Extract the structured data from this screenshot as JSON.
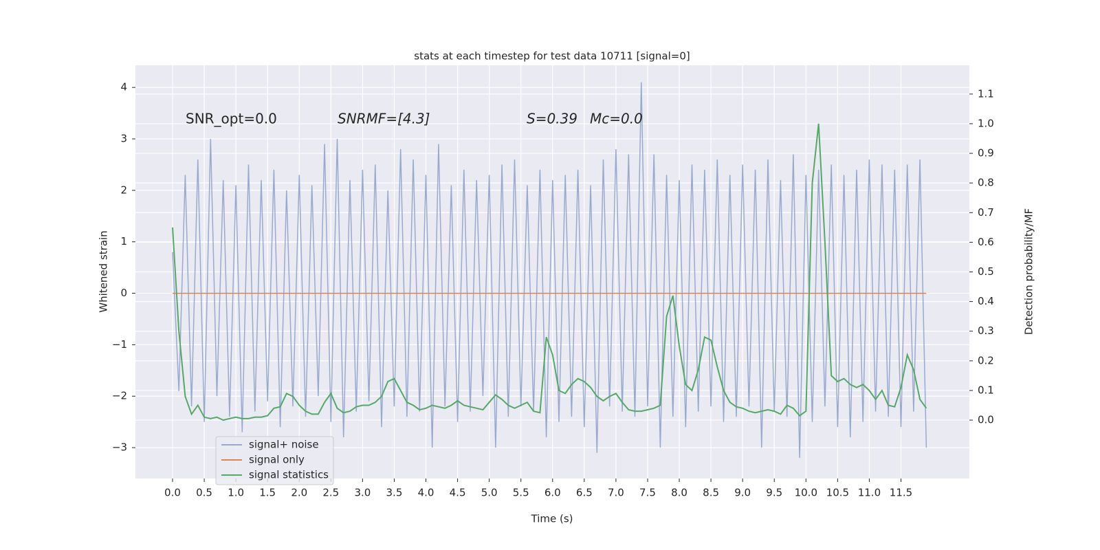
{
  "chart_data": {
    "type": "line",
    "title": "stats at each timestep for test data 10711 [signal=0]",
    "xlabel": "Time (s)",
    "ylabel": "Whitened strain",
    "y2label": "Detection probability/MF",
    "annotations": [
      "SNR_opt=0.0",
      "SNRMF=[4.3]",
      "S=0.39",
      "Mc=0.0"
    ],
    "x": [
      0.0,
      0.1,
      0.2,
      0.3,
      0.4,
      0.5,
      0.6,
      0.7,
      0.8,
      0.9,
      1.0,
      1.1,
      1.2,
      1.3,
      1.4,
      1.5,
      1.6,
      1.7,
      1.8,
      1.9,
      2.0,
      2.1,
      2.2,
      2.3,
      2.4,
      2.5,
      2.6,
      2.7,
      2.8,
      2.9,
      3.0,
      3.1,
      3.2,
      3.3,
      3.4,
      3.5,
      3.6,
      3.7,
      3.8,
      3.9,
      4.0,
      4.1,
      4.2,
      4.3,
      4.4,
      4.5,
      4.6,
      4.7,
      4.8,
      4.9,
      5.0,
      5.1,
      5.2,
      5.3,
      5.4,
      5.5,
      5.6,
      5.7,
      5.8,
      5.9,
      6.0,
      6.1,
      6.2,
      6.3,
      6.4,
      6.5,
      6.6,
      6.7,
      6.8,
      6.9,
      7.0,
      7.1,
      7.2,
      7.3,
      7.4,
      7.5,
      7.6,
      7.7,
      7.8,
      7.9,
      8.0,
      8.1,
      8.2,
      8.3,
      8.4,
      8.5,
      8.6,
      8.7,
      8.8,
      8.9,
      9.0,
      9.1,
      9.2,
      9.3,
      9.4,
      9.5,
      9.6,
      9.7,
      9.8,
      9.9,
      10.0,
      10.1,
      10.2,
      10.3,
      10.4,
      10.5,
      10.6,
      10.7,
      10.8,
      10.9,
      11.0,
      11.1,
      11.2,
      11.3,
      11.4,
      11.5,
      11.6,
      11.7,
      11.8,
      11.9
    ],
    "series": [
      {
        "name": "signal+ noise",
        "color": "#99aacf",
        "values": [
          0.8,
          -1.9,
          2.3,
          -2.2,
          2.6,
          -2.5,
          3.0,
          -2.0,
          2.2,
          -2.4,
          2.1,
          -2.7,
          2.5,
          -2.3,
          2.2,
          -2.1,
          2.4,
          -2.6,
          2.0,
          -2.2,
          2.3,
          -2.4,
          2.1,
          -2.0,
          2.9,
          -2.5,
          3.0,
          -2.8,
          2.2,
          -2.3,
          2.4,
          -2.1,
          2.5,
          -2.6,
          2.0,
          -2.2,
          2.8,
          -2.4,
          2.6,
          -2.3,
          2.3,
          -3.0,
          2.9,
          -2.2,
          2.1,
          -2.5,
          2.4,
          -2.3,
          2.2,
          -2.0,
          2.3,
          -3.0,
          2.5,
          -2.4,
          2.6,
          -2.2,
          2.1,
          -2.3,
          2.4,
          -2.8,
          2.2,
          -2.5,
          2.3,
          -2.4,
          2.4,
          -2.6,
          2.1,
          -3.1,
          2.6,
          -2.2,
          2.8,
          -2.3,
          2.7,
          -2.4,
          4.1,
          -2.2,
          2.7,
          -3.0,
          2.3,
          -2.4,
          2.2,
          -2.6,
          2.5,
          -2.3,
          2.4,
          -2.2,
          2.6,
          -2.5,
          2.3,
          -2.4,
          2.5,
          -2.2,
          2.4,
          -3.0,
          2.6,
          -2.3,
          2.2,
          -2.4,
          2.7,
          -3.2,
          2.3,
          -2.5,
          2.4,
          -2.2,
          2.5,
          -2.6,
          2.3,
          -2.8,
          2.4,
          -2.5,
          2.6,
          -2.3,
          2.5,
          -2.4,
          2.4,
          -2.6,
          2.5,
          -2.3,
          2.6,
          -3.0
        ]
      },
      {
        "name": "signal only",
        "color": "#dd8452",
        "values": [
          0,
          0,
          0,
          0,
          0,
          0,
          0,
          0,
          0,
          0,
          0,
          0,
          0,
          0,
          0,
          0,
          0,
          0,
          0,
          0,
          0,
          0,
          0,
          0,
          0,
          0,
          0,
          0,
          0,
          0,
          0,
          0,
          0,
          0,
          0,
          0,
          0,
          0,
          0,
          0,
          0,
          0,
          0,
          0,
          0,
          0,
          0,
          0,
          0,
          0,
          0,
          0,
          0,
          0,
          0,
          0,
          0,
          0,
          0,
          0,
          0,
          0,
          0,
          0,
          0,
          0,
          0,
          0,
          0,
          0,
          0,
          0,
          0,
          0,
          0,
          0,
          0,
          0,
          0,
          0,
          0,
          0,
          0,
          0,
          0,
          0,
          0,
          0,
          0,
          0,
          0,
          0,
          0,
          0,
          0,
          0,
          0,
          0,
          0,
          0,
          0,
          0,
          0,
          0,
          0,
          0,
          0,
          0,
          0,
          0,
          0,
          0,
          0,
          0,
          0,
          0,
          0,
          0,
          0,
          0
        ]
      },
      {
        "name": "signal statistics",
        "color": "#55a868",
        "axis": "y2",
        "values": [
          0.65,
          0.3,
          0.08,
          0.02,
          0.05,
          0.01,
          0.005,
          0.01,
          0.0,
          0.005,
          0.01,
          0.005,
          0.005,
          0.01,
          0.01,
          0.015,
          0.04,
          0.045,
          0.09,
          0.08,
          0.05,
          0.03,
          0.02,
          0.02,
          0.06,
          0.09,
          0.04,
          0.025,
          0.03,
          0.045,
          0.05,
          0.05,
          0.06,
          0.08,
          0.13,
          0.14,
          0.1,
          0.06,
          0.05,
          0.035,
          0.04,
          0.05,
          0.045,
          0.04,
          0.05,
          0.065,
          0.05,
          0.045,
          0.04,
          0.035,
          0.06,
          0.085,
          0.07,
          0.05,
          0.04,
          0.05,
          0.06,
          0.03,
          0.025,
          0.28,
          0.22,
          0.1,
          0.09,
          0.12,
          0.14,
          0.13,
          0.11,
          0.08,
          0.065,
          0.08,
          0.09,
          0.06,
          0.035,
          0.03,
          0.03,
          0.035,
          0.04,
          0.05,
          0.35,
          0.42,
          0.25,
          0.12,
          0.1,
          0.17,
          0.28,
          0.27,
          0.18,
          0.1,
          0.06,
          0.045,
          0.04,
          0.03,
          0.025,
          0.03,
          0.035,
          0.03,
          0.02,
          0.05,
          0.04,
          0.015,
          0.03,
          0.8,
          1.0,
          0.6,
          0.15,
          0.13,
          0.14,
          0.12,
          0.11,
          0.12,
          0.1,
          0.07,
          0.1,
          0.05,
          0.045,
          0.11,
          0.22,
          0.17,
          0.07,
          0.04
        ]
      }
    ],
    "xlim": [
      -0.586,
      12.58
    ],
    "ylim": [
      -3.6,
      4.43
    ],
    "y2lim": [
      -0.197,
      1.197
    ],
    "xticks": [
      {
        "value": 0,
        "label": "0.0"
      },
      0.5,
      {
        "value": 1,
        "label": "1.0"
      },
      1.5,
      {
        "value": 2,
        "label": "2.0"
      },
      2.5,
      {
        "value": 3,
        "label": "3.0"
      },
      3.5,
      {
        "value": 4,
        "label": "4.0"
      },
      4.5,
      {
        "value": 5,
        "label": "5.0"
      },
      5.5,
      {
        "value": 6,
        "label": "6.0"
      },
      6.5,
      {
        "value": 7,
        "label": "7.0"
      },
      7.5,
      {
        "value": 8,
        "label": "8.0"
      },
      8.5,
      {
        "value": 9,
        "label": "9.0"
      },
      9.5,
      {
        "value": 10,
        "label": "10.0"
      },
      10.5,
      {
        "value": 11,
        "label": "11.0"
      },
      11.5
    ],
    "yticks": [
      {
        "value": -3,
        "label": "−3"
      },
      {
        "value": -2,
        "label": "−2"
      },
      {
        "value": -1,
        "label": "−1"
      },
      0,
      1,
      2,
      3,
      4
    ],
    "y2ticks": [
      {
        "value": 0,
        "label": "0.0"
      },
      0.1,
      0.2,
      0.3,
      0.4,
      0.5,
      0.6,
      0.7,
      0.8,
      0.9,
      {
        "value": 1,
        "label": "1.0"
      },
      1.1
    ],
    "grid": true,
    "legend": "lower left"
  }
}
